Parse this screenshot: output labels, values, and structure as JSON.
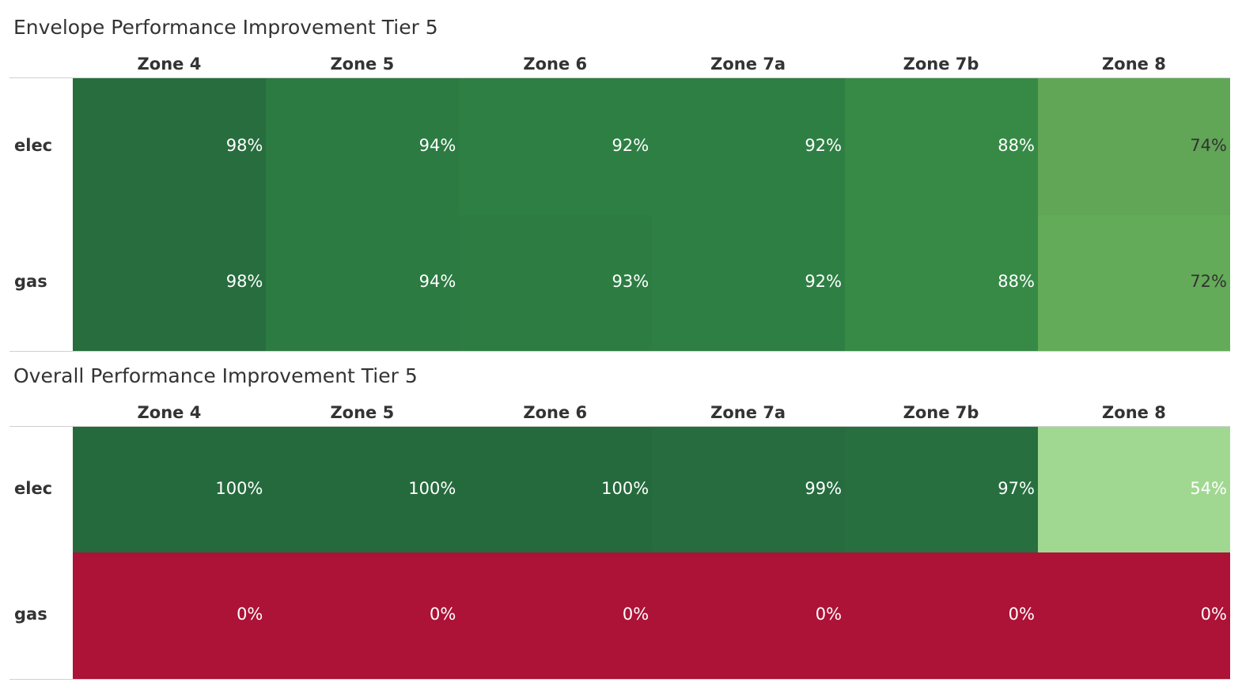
{
  "colors": {
    "scale": [
      {
        "value": 0,
        "color": "#ad1237"
      },
      {
        "value": 54,
        "color": "#a1d891"
      },
      {
        "value": 72,
        "color": "#63ab58"
      },
      {
        "value": 74,
        "color": "#60a656"
      },
      {
        "value": 88,
        "color": "#368a46"
      },
      {
        "value": 92,
        "color": "#2e7f43"
      },
      {
        "value": 93,
        "color": "#2d7d42"
      },
      {
        "value": 94,
        "color": "#2c7b42"
      },
      {
        "value": 97,
        "color": "#276f3f"
      },
      {
        "value": 98,
        "color": "#276d3e"
      },
      {
        "value": 99,
        "color": "#266c3e"
      },
      {
        "value": 100,
        "color": "#256a3d"
      }
    ],
    "dark_text": "#333333",
    "light_text": "#ffffff"
  },
  "chart_data": [
    {
      "type": "heatmap",
      "title": "Envelope Performance Improvement Tier 5",
      "columns": [
        "Zone 4",
        "Zone 5",
        "Zone 6",
        "Zone 7a",
        "Zone 7b",
        "Zone 8"
      ],
      "rows": [
        {
          "name": "elec",
          "values": [
            98,
            94,
            92,
            92,
            88,
            74
          ],
          "labels": [
            "98%",
            "94%",
            "92%",
            "92%",
            "88%",
            "74%"
          ]
        },
        {
          "name": "gas",
          "values": [
            98,
            94,
            93,
            92,
            88,
            72
          ],
          "labels": [
            "98%",
            "94%",
            "93%",
            "92%",
            "88%",
            "72%"
          ]
        }
      ],
      "value_unit": "%"
    },
    {
      "type": "heatmap",
      "title": "Overall Performance Improvement Tier 5",
      "columns": [
        "Zone 4",
        "Zone 5",
        "Zone 6",
        "Zone 7a",
        "Zone 7b",
        "Zone 8"
      ],
      "rows": [
        {
          "name": "elec",
          "values": [
            100,
            100,
            100,
            99,
            97,
            54
          ],
          "labels": [
            "100%",
            "100%",
            "100%",
            "99%",
            "97%",
            "54%"
          ]
        },
        {
          "name": "gas",
          "values": [
            0,
            0,
            0,
            0,
            0,
            0
          ],
          "labels": [
            "0%",
            "0%",
            "0%",
            "0%",
            "0%",
            "0%"
          ]
        }
      ],
      "value_unit": "%"
    }
  ]
}
